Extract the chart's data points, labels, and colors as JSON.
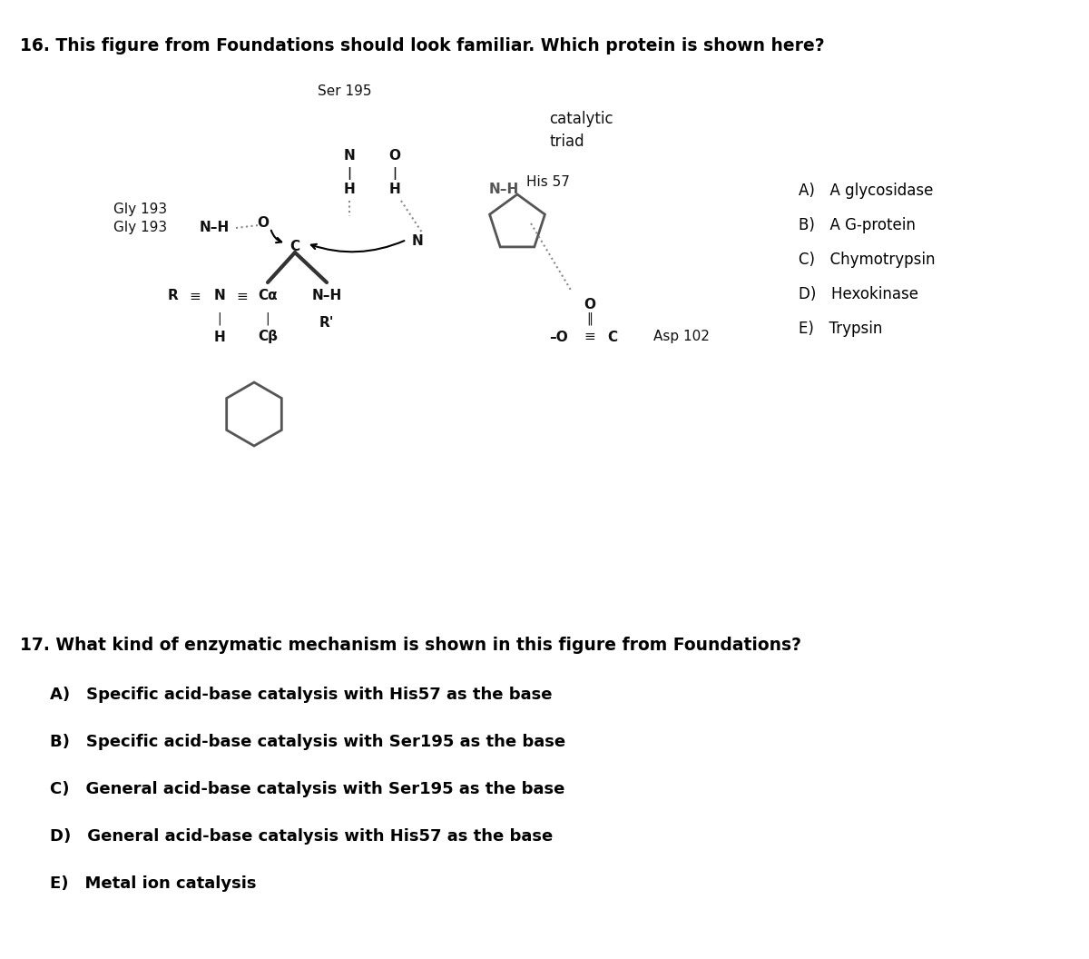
{
  "q16_text": "16. This figure from Foundations should look familiar. Which protein is shown here?",
  "q16_options": [
    "A) A glycosidase",
    "B) A G-protein",
    "C) Chymotrypsin",
    "D) Hexokinase",
    "E) Trypsin"
  ],
  "q17_text": "17. What kind of enzymatic mechanism is shown in this figure from Foundations?",
  "q17_options": [
    "A) Specific acid-base catalysis with His57 as the base",
    "B) Specific acid-base catalysis with Ser195 as the base",
    "C) General acid-base catalysis with Ser195 as the base",
    "D) General acid-base catalysis with His57 as the base",
    "E) Metal ion catalysis"
  ],
  "bg_color": "#ffffff",
  "text_color": "#000000",
  "blob_fill": "#d8d8d8",
  "blob_edge": "#000000"
}
